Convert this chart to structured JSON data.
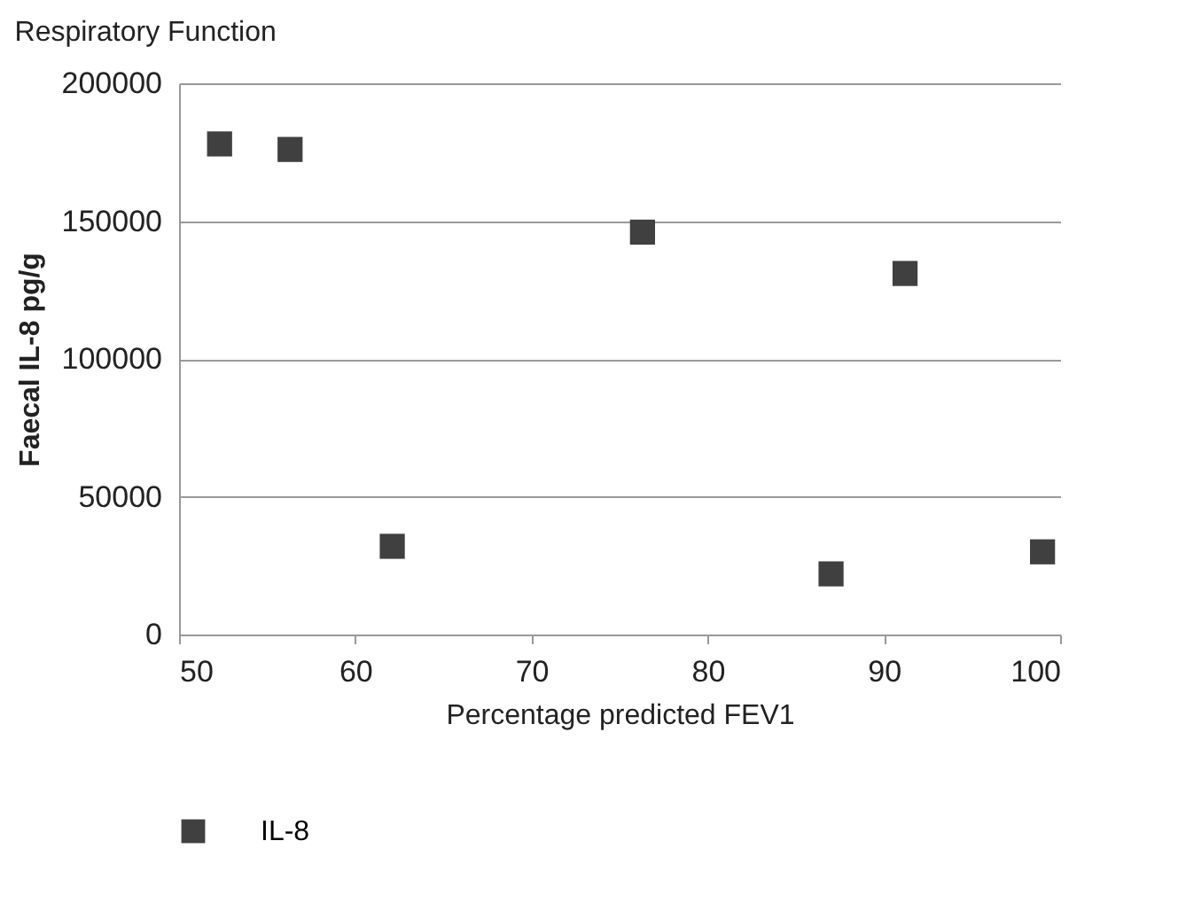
{
  "chart_data": {
    "type": "scatter",
    "title": "Respiratory Function",
    "xlabel": "Percentage predicted FEV1",
    "ylabel": "Faecal IL-8 pg/g",
    "x": [
      52.3,
      56.3,
      62.1,
      76.3,
      87,
      91.2,
      99
    ],
    "series": [
      {
        "name": "IL-8",
        "color": "#404040",
        "values": [
          178000,
          176000,
          32000,
          146000,
          22000,
          131000,
          30000
        ]
      }
    ],
    "xlim": [
      50,
      100
    ],
    "xticks": [
      50,
      60,
      70,
      80,
      90,
      100
    ],
    "ylim": [
      0,
      200000
    ],
    "yticks": [
      0,
      50000,
      100000,
      150000,
      200000
    ],
    "grid": "y",
    "legend": "bottom",
    "marker": "square"
  }
}
